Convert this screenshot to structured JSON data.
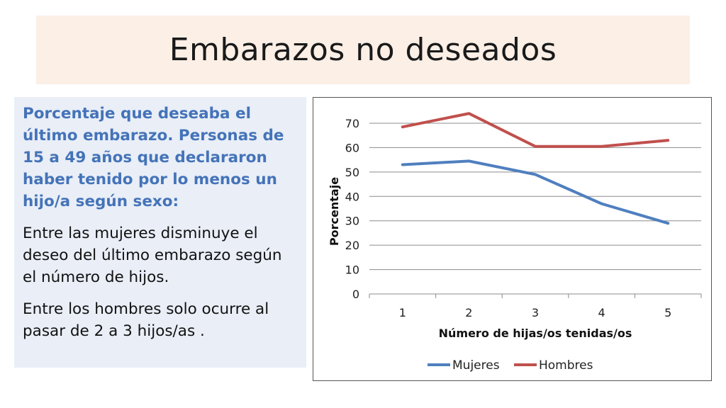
{
  "slide": {
    "title": "Embarazos no deseados"
  },
  "panel": {
    "lead": "Porcentaje que deseaba el último embarazo. Personas de 15 a 49 años que declararon haber tenido por lo menos un hijo/a según sexo:",
    "para1": "Entre las mujeres disminuye el deseo del último embarazo según el número de hijos.",
    "para2": "Entre los hombres  solo ocurre al pasar de 2 a 3 hijos/as ."
  },
  "chart_data": {
    "type": "line",
    "title": "",
    "xlabel": "Número de hijas/os tenidas/os",
    "ylabel": "Porcentaje",
    "categories": [
      "1",
      "2",
      "3",
      "4",
      "5"
    ],
    "ylim": [
      0,
      70
    ],
    "yticks": [
      "0",
      "10",
      "20",
      "30",
      "40",
      "50",
      "60",
      "70"
    ],
    "grid": true,
    "legend_position": "bottom",
    "series": [
      {
        "name": "Mujeres",
        "color": "#4f7fbf",
        "values": [
          53,
          54.5,
          49,
          37,
          29
        ]
      },
      {
        "name": "Hombres",
        "color": "#c0504d",
        "values": [
          68.5,
          74,
          60.5,
          60.5,
          63
        ]
      }
    ]
  }
}
